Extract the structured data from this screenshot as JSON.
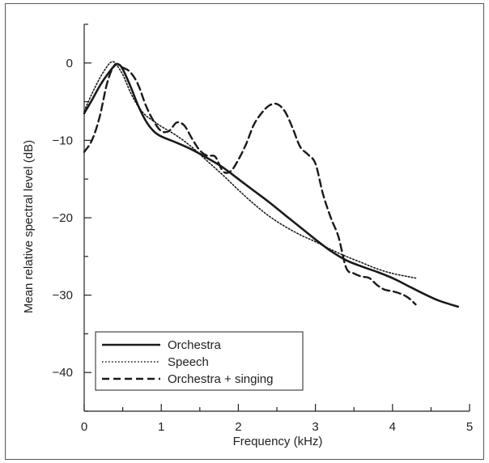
{
  "chart_data": {
    "type": "line",
    "title": "",
    "xlabel": "Frequency (kHz)",
    "ylabel": "Mean relative spectral level (dB)",
    "xlim": [
      0,
      5
    ],
    "ylim": [
      -45,
      5
    ],
    "x_ticks": [
      0,
      1,
      2,
      3,
      4,
      5
    ],
    "y_ticks": [
      0,
      -10,
      -20,
      -30,
      -40
    ],
    "grid": false,
    "legend_position": "bottom-left",
    "series": [
      {
        "name": "Orchestra",
        "style": "solid",
        "color": "#1a1a1a",
        "points": [
          [
            0,
            -6.5
          ],
          [
            0.1,
            -4.8
          ],
          [
            0.2,
            -3
          ],
          [
            0.3,
            -1.5
          ],
          [
            0.4,
            -0.3
          ],
          [
            0.45,
            -0.2
          ],
          [
            0.5,
            -0.8
          ],
          [
            0.6,
            -3
          ],
          [
            0.7,
            -5.5
          ],
          [
            0.8,
            -7.5
          ],
          [
            0.9,
            -8.8
          ],
          [
            1.0,
            -9.5
          ],
          [
            1.2,
            -10.3
          ],
          [
            1.4,
            -11.2
          ],
          [
            1.6,
            -12.3
          ],
          [
            1.8,
            -13.5
          ],
          [
            2.0,
            -15
          ],
          [
            2.2,
            -16.5
          ],
          [
            2.4,
            -18
          ],
          [
            2.6,
            -19.6
          ],
          [
            2.8,
            -21.2
          ],
          [
            3.0,
            -22.8
          ],
          [
            3.2,
            -24.3
          ],
          [
            3.4,
            -25.5
          ],
          [
            3.6,
            -26.3
          ],
          [
            3.8,
            -27
          ],
          [
            4.0,
            -27.8
          ],
          [
            4.2,
            -28.8
          ],
          [
            4.4,
            -29.8
          ],
          [
            4.6,
            -30.7
          ],
          [
            4.85,
            -31.5
          ]
        ]
      },
      {
        "name": "Speech",
        "style": "dotted",
        "color": "#1a1a1a",
        "points": [
          [
            0,
            -6.2
          ],
          [
            0.1,
            -4
          ],
          [
            0.2,
            -2
          ],
          [
            0.3,
            -0.4
          ],
          [
            0.35,
            0.1
          ],
          [
            0.4,
            0.0
          ],
          [
            0.5,
            -1.5
          ],
          [
            0.6,
            -3.8
          ],
          [
            0.7,
            -5.6
          ],
          [
            0.8,
            -6.8
          ],
          [
            0.9,
            -7.5
          ],
          [
            1.0,
            -8.2
          ],
          [
            1.2,
            -9.4
          ],
          [
            1.4,
            -10.9
          ],
          [
            1.6,
            -12.7
          ],
          [
            1.8,
            -14.5
          ],
          [
            2.0,
            -16.4
          ],
          [
            2.2,
            -18.2
          ],
          [
            2.4,
            -19.8
          ],
          [
            2.6,
            -21.1
          ],
          [
            2.8,
            -22.2
          ],
          [
            3.0,
            -23.1
          ],
          [
            3.2,
            -24.1
          ],
          [
            3.4,
            -25
          ],
          [
            3.6,
            -25.8
          ],
          [
            3.8,
            -26.6
          ],
          [
            4.0,
            -27.2
          ],
          [
            4.2,
            -27.6
          ],
          [
            4.3,
            -27.8
          ]
        ]
      },
      {
        "name": "Orchestra + singing",
        "style": "dashed",
        "color": "#1a1a1a",
        "points": [
          [
            0,
            -11.5
          ],
          [
            0.1,
            -10
          ],
          [
            0.2,
            -7
          ],
          [
            0.3,
            -2.5
          ],
          [
            0.4,
            -0.2
          ],
          [
            0.5,
            -0.6
          ],
          [
            0.6,
            -1.2
          ],
          [
            0.7,
            -2.8
          ],
          [
            0.8,
            -5.5
          ],
          [
            0.9,
            -7.5
          ],
          [
            1.0,
            -8.8
          ],
          [
            1.1,
            -8.8
          ],
          [
            1.2,
            -7.7
          ],
          [
            1.3,
            -8.1
          ],
          [
            1.4,
            -9.8
          ],
          [
            1.5,
            -11.3
          ],
          [
            1.6,
            -12
          ],
          [
            1.7,
            -12.1
          ],
          [
            1.8,
            -14
          ],
          [
            1.9,
            -14
          ],
          [
            2.0,
            -12.5
          ],
          [
            2.1,
            -10.5
          ],
          [
            2.2,
            -8
          ],
          [
            2.3,
            -6.5
          ],
          [
            2.4,
            -5.5
          ],
          [
            2.5,
            -5.3
          ],
          [
            2.6,
            -6.2
          ],
          [
            2.7,
            -8.3
          ],
          [
            2.8,
            -10.8
          ],
          [
            2.9,
            -11.8
          ],
          [
            3.0,
            -13
          ],
          [
            3.1,
            -17
          ],
          [
            3.2,
            -20
          ],
          [
            3.3,
            -22.5
          ],
          [
            3.4,
            -26.5
          ],
          [
            3.5,
            -27.2
          ],
          [
            3.6,
            -27.6
          ],
          [
            3.7,
            -27.8
          ],
          [
            3.8,
            -28.7
          ],
          [
            3.9,
            -29.3
          ],
          [
            4.0,
            -29.5
          ],
          [
            4.1,
            -29.8
          ],
          [
            4.2,
            -30.3
          ],
          [
            4.3,
            -31.2
          ]
        ]
      }
    ]
  }
}
